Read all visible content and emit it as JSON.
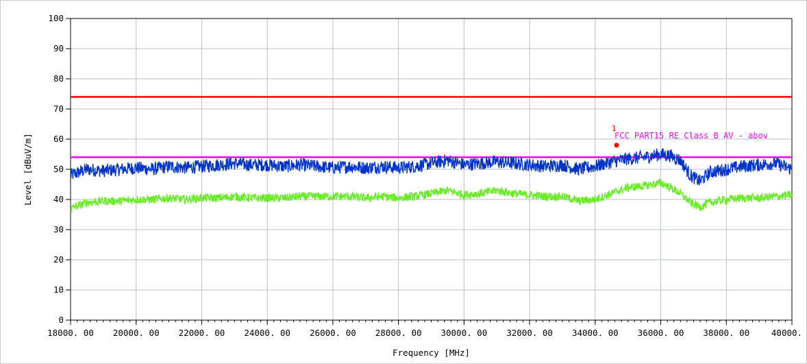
{
  "chart_data": {
    "type": "line",
    "xlabel": "Frequency [MHz]",
    "ylabel": "Level [dBuV/m]",
    "xlim": [
      18000,
      40000
    ],
    "ylim": [
      0,
      100
    ],
    "x_ticks": [
      18000,
      20000,
      22000,
      24000,
      26000,
      28000,
      30000,
      32000,
      34000,
      36000,
      38000,
      40000
    ],
    "x_tick_labels": [
      "18000. 00",
      "20000. 00",
      "22000. 00",
      "24000. 00",
      "26000. 00",
      "28000. 00",
      "30000. 00",
      "32000. 00",
      "34000. 00",
      "36000. 00",
      "38000. 00",
      "40000. 0"
    ],
    "y_ticks": [
      0,
      10,
      20,
      30,
      40,
      50,
      60,
      70,
      80,
      90,
      100
    ],
    "grid": true,
    "limit_lines": [
      {
        "value": 74,
        "color": "#ff0000"
      },
      {
        "value": 54,
        "color": "#ff00ff",
        "label": "FCC PART15 RE Class B AV - abov"
      }
    ],
    "series": [
      {
        "color": "#0033cc",
        "x": [
          18000,
          18500,
          19000,
          19500,
          20000,
          20500,
          21000,
          21500,
          22000,
          22500,
          23000,
          23500,
          24000,
          24500,
          25000,
          25500,
          26000,
          26500,
          27000,
          27500,
          28000,
          28500,
          29000,
          29500,
          30000,
          30500,
          31000,
          31500,
          32000,
          32500,
          33000,
          33500,
          34000,
          34500,
          35000,
          35500,
          36000,
          36300,
          36600,
          36900,
          37200,
          37500,
          38000,
          38500,
          39000,
          39500,
          40000
        ],
        "y": [
          48,
          50,
          49.5,
          50,
          50.5,
          50,
          51,
          50.5,
          51,
          51.5,
          52,
          51.5,
          51.5,
          51,
          51.5,
          51,
          50.5,
          51,
          50.5,
          51,
          50.5,
          51,
          52,
          53,
          51.5,
          52,
          52.5,
          52,
          51.5,
          51,
          51.5,
          50,
          51,
          52.5,
          53.5,
          54,
          55,
          54.5,
          53,
          48,
          46,
          49,
          50,
          51,
          51.5,
          52,
          50
        ]
      },
      {
        "color": "#66ee22",
        "x": [
          18000,
          18500,
          19000,
          19500,
          20000,
          20500,
          21000,
          21500,
          22000,
          22500,
          23000,
          23500,
          24000,
          24500,
          25000,
          25500,
          26000,
          26500,
          27000,
          27500,
          28000,
          28500,
          29000,
          29500,
          30000,
          30500,
          31000,
          31500,
          32000,
          32500,
          33000,
          33500,
          34000,
          34500,
          35000,
          35500,
          36000,
          36300,
          36600,
          36900,
          37200,
          37500,
          38000,
          38500,
          39000,
          39500,
          40000
        ],
        "y": [
          37,
          39,
          39.5,
          39.5,
          40,
          40,
          40.5,
          40,
          40.5,
          40.5,
          41,
          40.5,
          40.5,
          40.5,
          41,
          41,
          41,
          41,
          40.5,
          41,
          40.5,
          41,
          42,
          43,
          41.5,
          42,
          43,
          42,
          41.5,
          41,
          41,
          39.5,
          40,
          42,
          44,
          44.5,
          45.5,
          44,
          42,
          39,
          37.5,
          39,
          40,
          40.5,
          40.5,
          41,
          41.5
        ]
      }
    ],
    "markers": [
      {
        "label": "1",
        "x": 34650,
        "y": 58,
        "color": "#ff0000"
      }
    ]
  }
}
